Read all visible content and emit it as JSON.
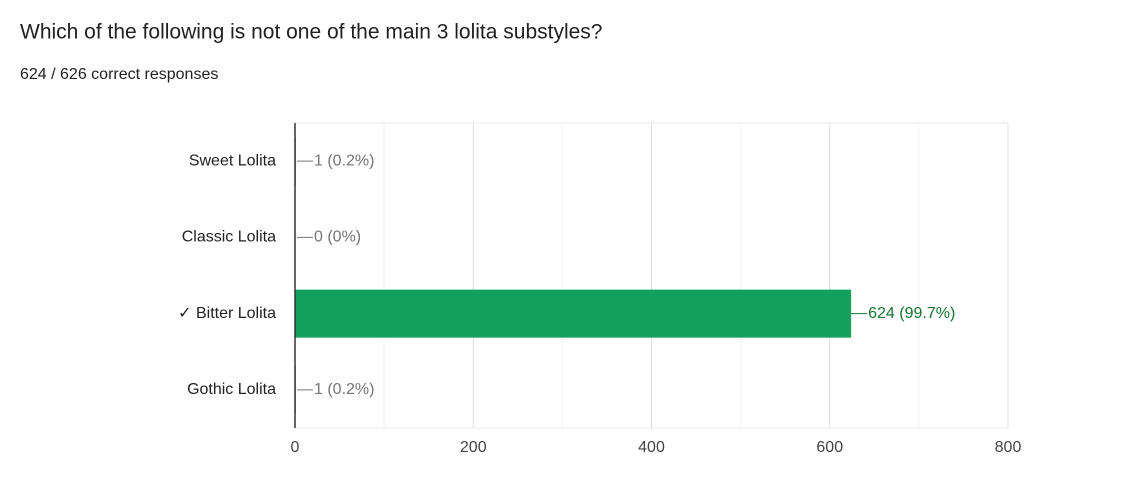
{
  "chart_data": {
    "type": "hbar",
    "title": "Which of the following is not one of the main 3 lolita substyles?",
    "subtitle": "624 / 626 correct responses",
    "categories": [
      "Sweet Lolita",
      "Classic Lolita",
      "✓ Bitter Lolita",
      "Gothic Lolita"
    ],
    "values": [
      1,
      0,
      624,
      1
    ],
    "value_labels": [
      "1 (0.2%)",
      "0 (0%)",
      "624 (99.7%)",
      "1 (0.2%)"
    ],
    "colors": [
      "#9e9e9e",
      "#9e9e9e",
      "#12a05c",
      "#9e9e9e"
    ],
    "label_colors": [
      "#757575",
      "#757575",
      "#137333",
      "#757575"
    ],
    "xlim": [
      0,
      800
    ],
    "xticks": [
      0,
      200,
      400,
      600,
      800
    ],
    "x_minor_ticks": [
      100,
      300,
      500,
      700
    ],
    "grid": true
  }
}
